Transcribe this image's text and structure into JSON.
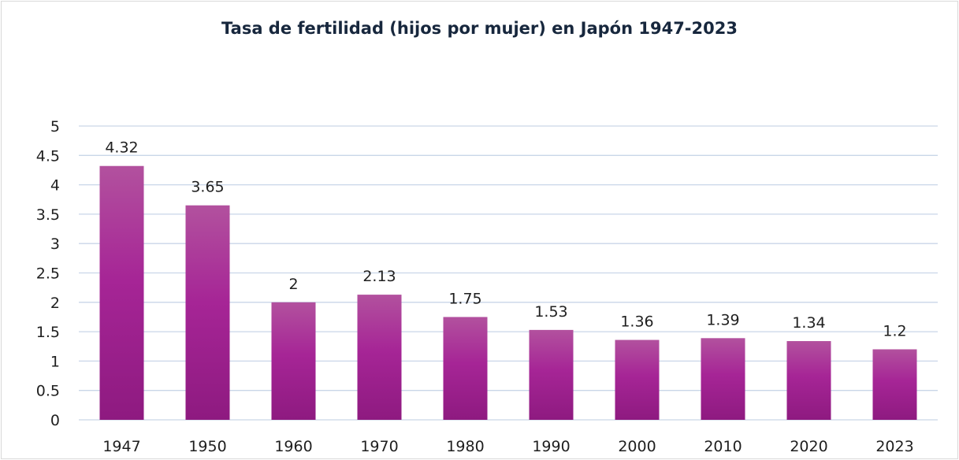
{
  "chart_data": {
    "type": "bar",
    "title": "Tasa de fertilidad (hijos por mujer) en Japón 1947-2023",
    "xlabel": "",
    "ylabel": "",
    "categories": [
      "1947",
      "1950",
      "1960",
      "1970",
      "1980",
      "1990",
      "2000",
      "2010",
      "2020",
      "2023"
    ],
    "values": [
      4.32,
      3.65,
      2,
      2.13,
      1.75,
      1.53,
      1.36,
      1.39,
      1.34,
      1.2
    ],
    "data_labels": [
      "4.32",
      "3.65",
      "2",
      "2.13",
      "1.75",
      "1.53",
      "1.36",
      "1.39",
      "1.34",
      "1.2"
    ],
    "ylim": [
      0,
      5
    ],
    "yticks": [
      "0",
      "0.5",
      "1",
      "1.5",
      "2",
      "2.5",
      "3",
      "3.5",
      "4",
      "4.5",
      "5"
    ],
    "grid": true,
    "legend": "none",
    "colors": {
      "bar_top": "#b2519e",
      "bar_mid": "#a62596",
      "bar_bottom": "#8e1a80",
      "grid": "#c9d6e8",
      "title": "#17273d"
    }
  }
}
